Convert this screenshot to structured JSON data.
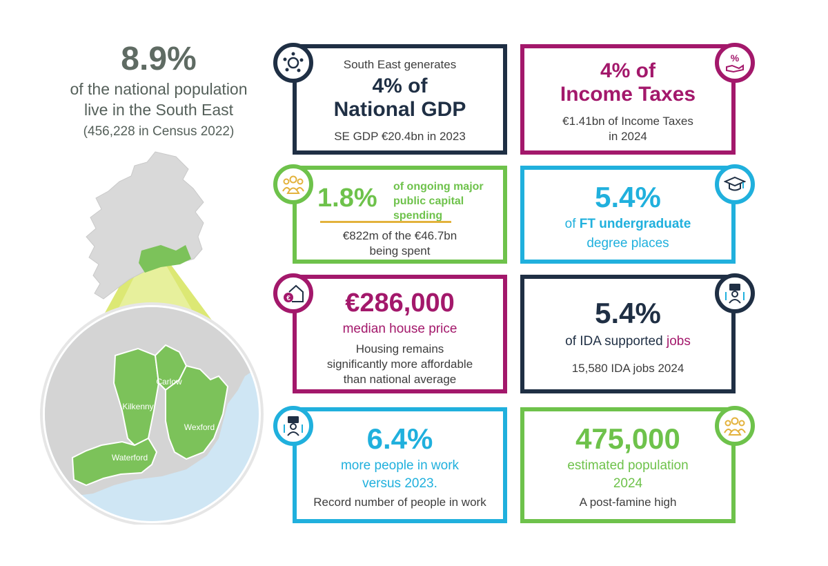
{
  "population": {
    "percent": "8.9%",
    "line1": "of the national population",
    "line2": "live in the South East",
    "census": "(456,228 in Census 2022)"
  },
  "map": {
    "counties": [
      "Carlow",
      "Kilkenny",
      "Wexford",
      "Waterford"
    ],
    "colors": {
      "land": "#d9d9d9",
      "region": "#7cc25a",
      "sea": "#cfe6f4",
      "beam": "#c7da3f"
    }
  },
  "cards": {
    "gdp": {
      "intro": "South East generates",
      "headline1": "4% of",
      "headline2": "National GDP",
      "sub": "SE GDP €20.4bn in 2023",
      "icon": "economy-icon"
    },
    "tax": {
      "headline1": "4% of",
      "headline2": "Income Taxes",
      "sub1": "€1.41bn of Income Taxes",
      "sub2": "in 2024",
      "icon": "percent-hand-icon"
    },
    "capital": {
      "value": "1.8%",
      "desc1": "of ongoing major",
      "desc2": "public capital",
      "desc3": "spending",
      "sub1": "€822m of the €46.7bn",
      "sub2": "being spent",
      "icon": "people-group-icon"
    },
    "degree": {
      "value": "5.4%",
      "desc_prefix": "of ",
      "desc_bold": "FT undergraduate",
      "desc2": "degree places",
      "icon": "graduation-icon"
    },
    "house": {
      "value": "€286,000",
      "desc": "median house price",
      "sub1": "Housing remains",
      "sub2": "significantly more affordable",
      "sub3": "than national average",
      "icon": "house-euro-icon"
    },
    "ida": {
      "value": "5.4%",
      "desc_prefix": "of IDA supported ",
      "desc_highlight": "jobs",
      "sub": "15,580 IDA jobs 2024",
      "icon": "worker-briefcase-icon"
    },
    "work": {
      "value": "6.4%",
      "desc1": "more people in work",
      "desc2": "versus 2023.",
      "sub": "Record number of people in work",
      "icon": "worker-briefcase-icon"
    },
    "estimate": {
      "value": "475,000",
      "desc1": "estimated population",
      "desc2": "2024",
      "sub": "A post-famine high",
      "icon": "people-group-icon"
    }
  },
  "colors": {
    "navy": "#1f2f44",
    "plum": "#a3186b",
    "green": "#6ec24b",
    "cyan": "#20b0dd",
    "gold": "#e3b23c"
  }
}
